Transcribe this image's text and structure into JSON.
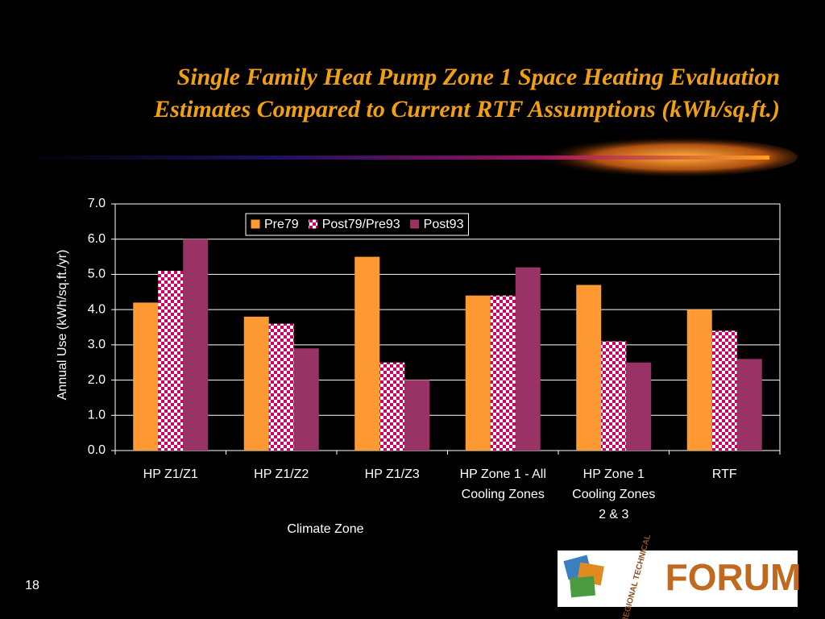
{
  "chart_data": {
    "type": "bar",
    "title_lines": [
      "Single Family Heat Pump Zone 1 Space Heating Evaluation",
      "Estimates Compared to Current RTF Assumptions (kWh/sq.ft.)"
    ],
    "x_label": "Climate Zone",
    "y_label": "Annual Use (kWh/sq.ft./yr)",
    "categories": [
      "HP Z1/Z1",
      "HP Z1/Z2",
      "HP Z1/Z3",
      "HP Zone 1 - All Cooling Zones",
      "HP Zone 1 Cooling Zones 2 & 3",
      "RTF"
    ],
    "series": [
      {
        "name": "Pre79",
        "color": "#ff9933",
        "values": [
          4.2,
          3.8,
          5.5,
          4.4,
          4.7,
          4.0
        ]
      },
      {
        "name": "Post79/Pre93",
        "color": "#cc0066",
        "pattern": "checker",
        "values": [
          5.1,
          3.6,
          2.5,
          4.4,
          3.1,
          3.4
        ]
      },
      {
        "name": "Post93",
        "color": "#993366",
        "values": [
          6.0,
          2.9,
          2.0,
          5.2,
          2.5,
          2.6
        ]
      }
    ],
    "ylim": [
      0,
      7
    ],
    "yticks": [
      {
        "value": 0,
        "label": "0.0"
      },
      {
        "value": 1,
        "label": "1.0"
      },
      {
        "value": 2,
        "label": "2.0"
      },
      {
        "value": 3,
        "label": "3.0"
      },
      {
        "value": 4,
        "label": "4.0"
      },
      {
        "value": 5,
        "label": "5.0"
      },
      {
        "value": 6,
        "label": "6.0"
      },
      {
        "value": 7,
        "label": "7.0"
      }
    ],
    "grid": true,
    "legend": "top"
  },
  "slide_number": "18",
  "logo": {
    "subtext": "REGIONAL TECHNICAL",
    "text": "FORUM"
  }
}
